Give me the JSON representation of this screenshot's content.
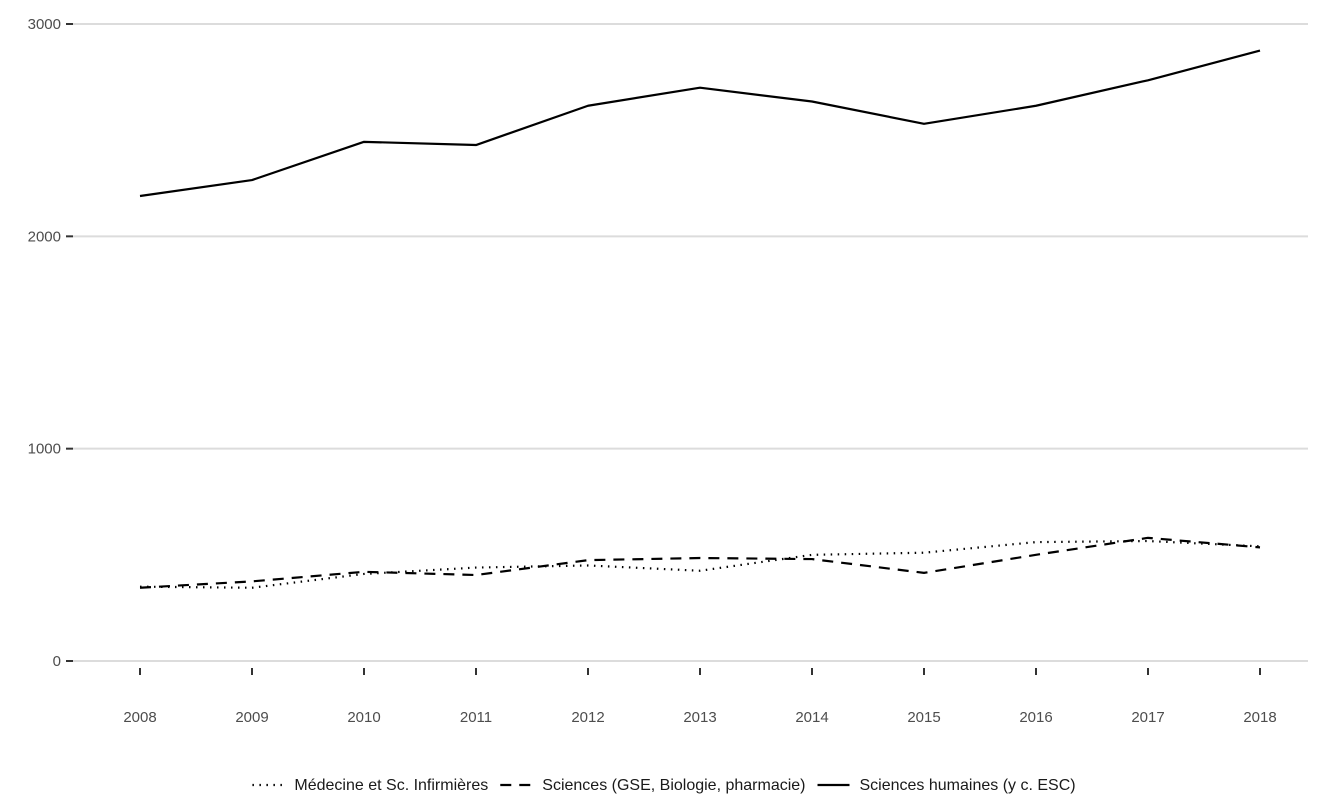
{
  "chart_data": {
    "type": "line",
    "title": "",
    "xlabel": "",
    "ylabel": "",
    "x": [
      2008,
      2009,
      2010,
      2011,
      2012,
      2013,
      2014,
      2015,
      2016,
      2017,
      2018
    ],
    "x_tick_labels": [
      "2008",
      "2009",
      "2010",
      "2011",
      "2012",
      "2013",
      "2014",
      "2015",
      "2016",
      "2017",
      "2018"
    ],
    "ylim": [
      0,
      3000
    ],
    "y_ticks": [
      0,
      1000,
      2000,
      3000
    ],
    "y_tick_labels": [
      "0",
      "1000",
      "2000",
      "3000"
    ],
    "grid": true,
    "legend_position": "bottom",
    "series": [
      {
        "name": "Médecine et Sc. Infirmières",
        "line_style": "dotted",
        "color": "#000000",
        "values": [
          350,
          345,
          410,
          440,
          450,
          425,
          500,
          510,
          560,
          565,
          540
        ]
      },
      {
        "name": "Sciences (GSE, Biologie, pharmacie)",
        "line_style": "dashed",
        "color": "#000000",
        "values": [
          345,
          375,
          420,
          405,
          475,
          485,
          480,
          415,
          500,
          580,
          535
        ]
      },
      {
        "name": "Sciences humaines (y c. ESC)",
        "line_style": "solid",
        "color": "#000000",
        "values": [
          2190,
          2265,
          2445,
          2430,
          2615,
          2700,
          2635,
          2530,
          2615,
          2735,
          2875
        ]
      }
    ]
  }
}
